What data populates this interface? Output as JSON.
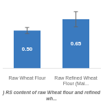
{
  "chart_data": {
    "type": "bar",
    "title": ") RS content of raw Wheat flour and refined wh...",
    "categories": [
      "Raw Wheat Flour",
      "Raw Refined Wheat Flour (Mai..."
    ],
    "values": [
      0.5,
      0.65
    ],
    "value_labels": [
      "0.50",
      "0.65"
    ],
    "errors": [
      0.04,
      0.1
    ],
    "color": "#3a7abf",
    "ylim": [
      0,
      0.85
    ],
    "grid": false,
    "data_labels": true,
    "tick_labels": "x"
  }
}
